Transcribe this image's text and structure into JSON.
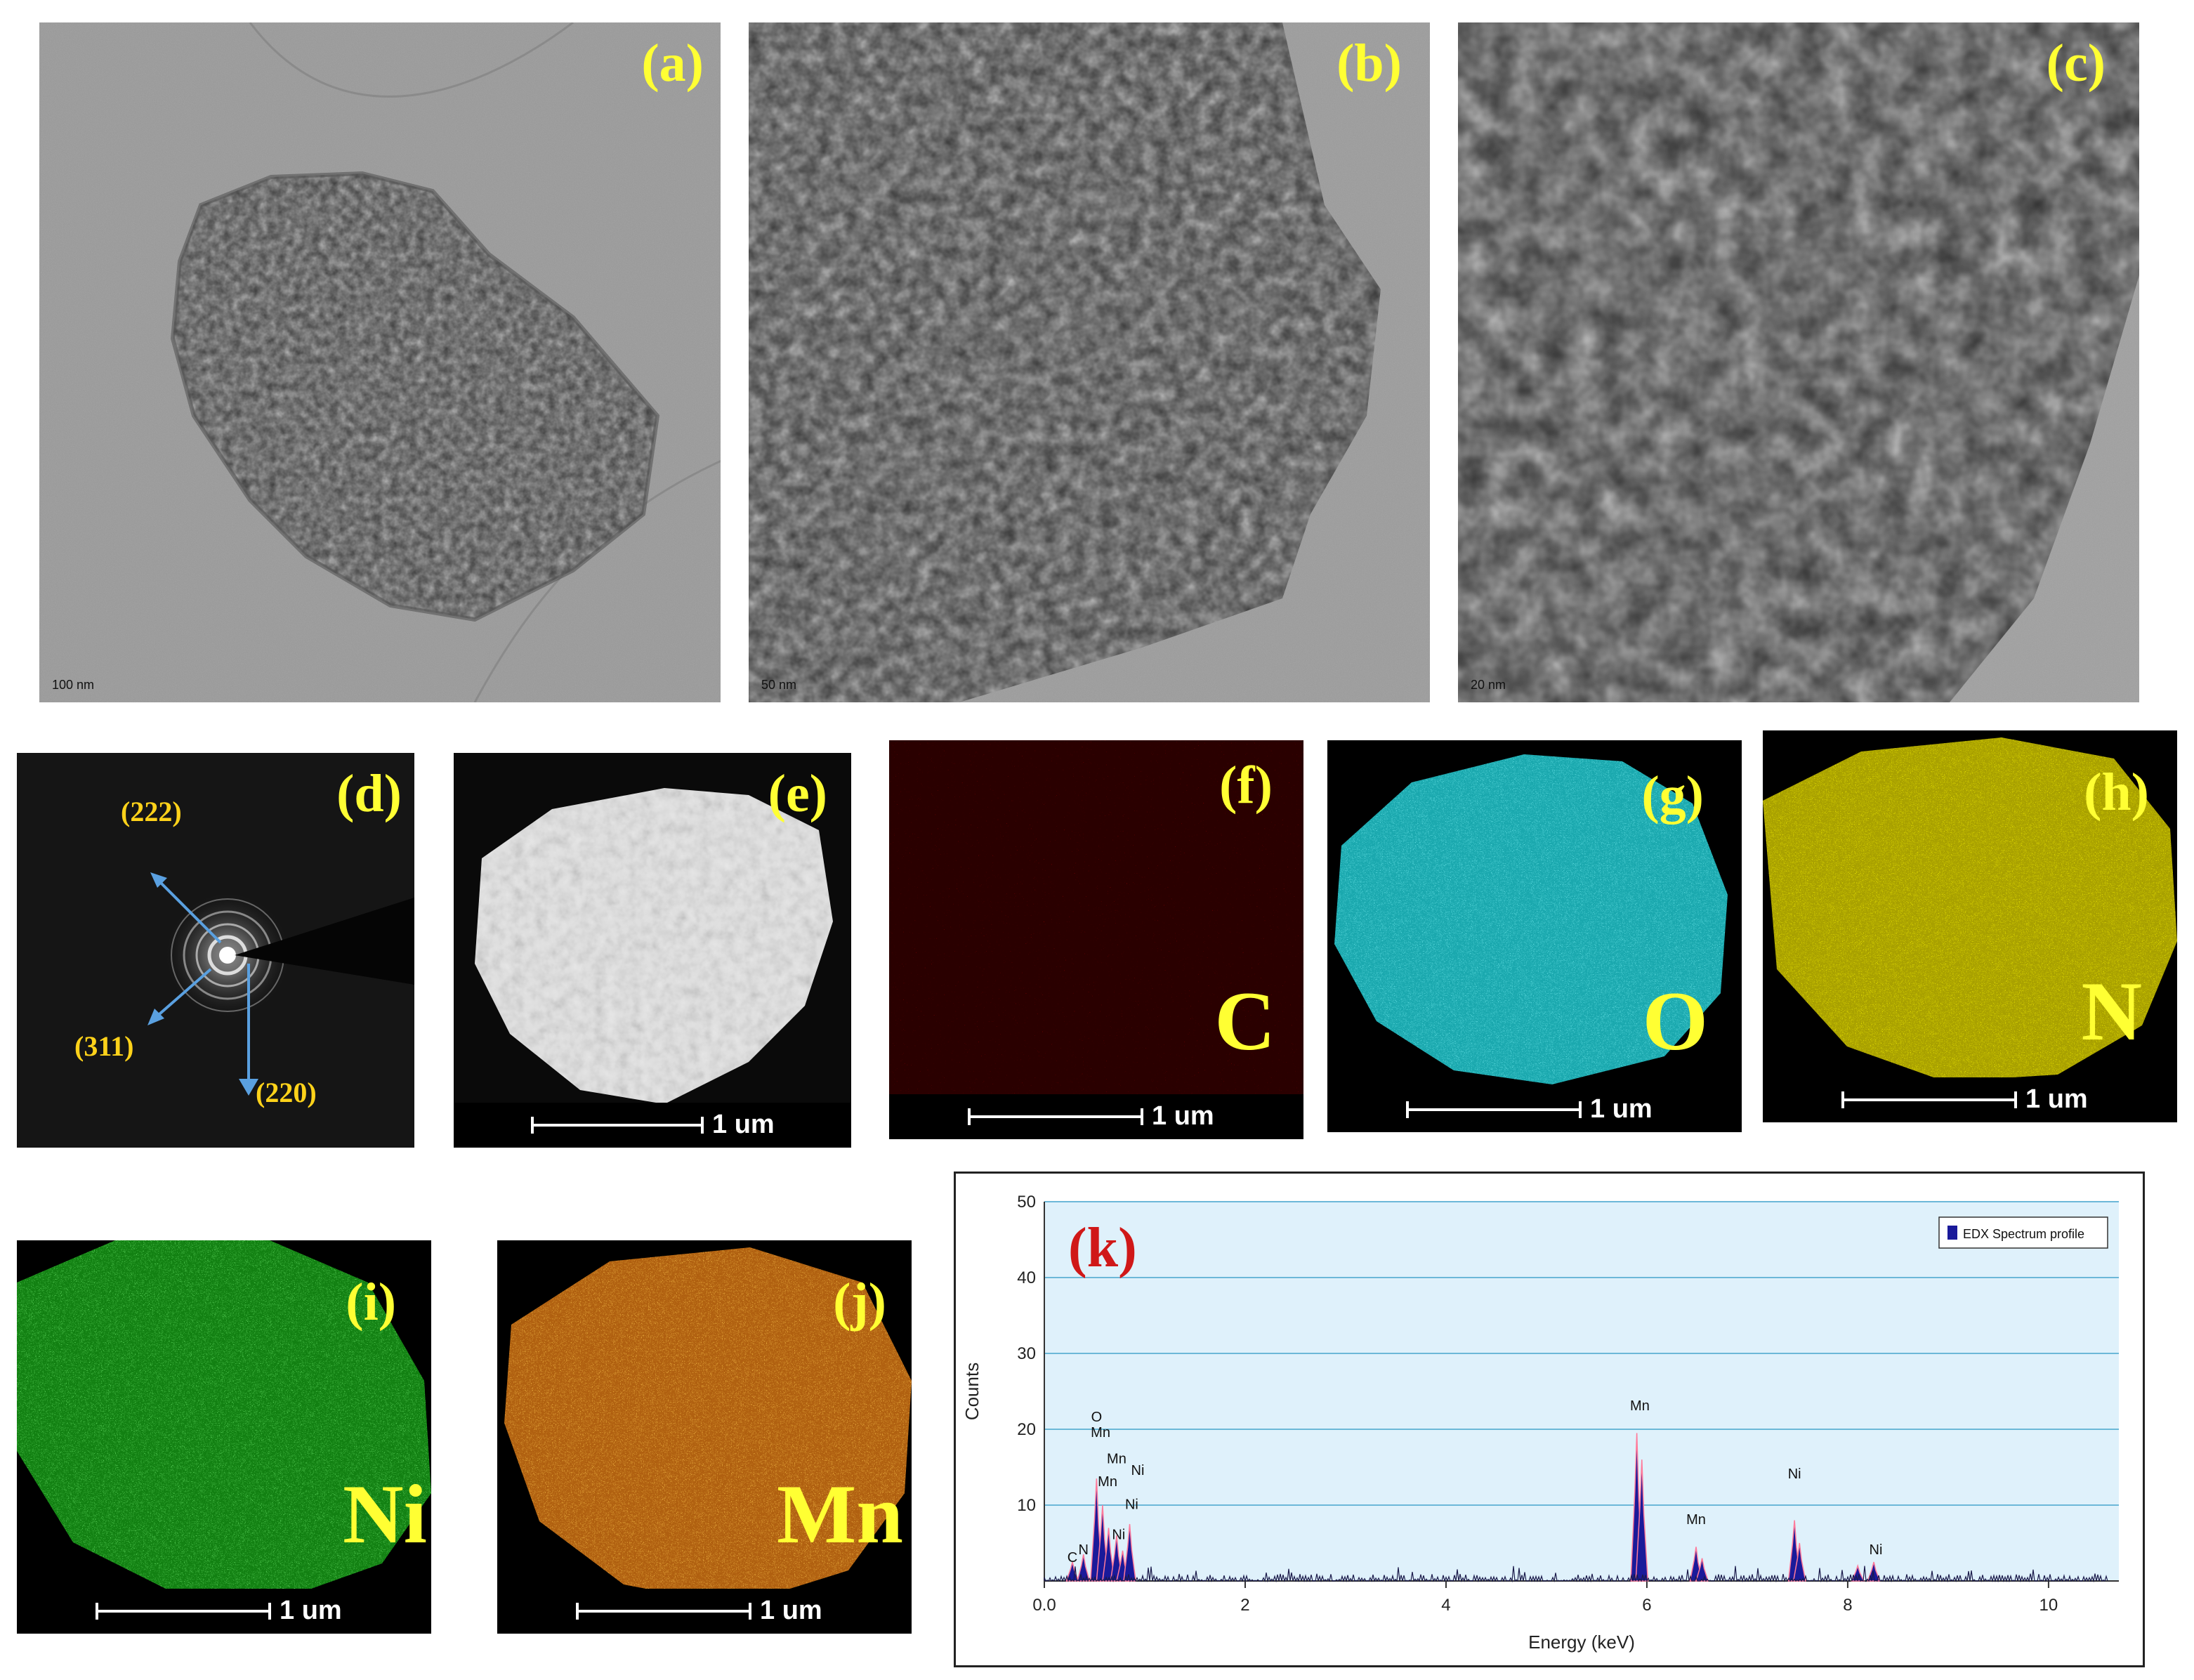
{
  "panels": {
    "a": {
      "label": "(a)",
      "scale": "100 nm"
    },
    "b": {
      "label": "(b)",
      "scale": "50 nm"
    },
    "c": {
      "label": "(c)",
      "scale": "20 nm"
    },
    "d": {
      "label": "(d)",
      "rings": [
        "(222)",
        "(311)",
        "(220)"
      ]
    },
    "e": {
      "label": "(e)",
      "scale": "1 um"
    },
    "f": {
      "label": "(f)",
      "element": "C",
      "scale": "1 um",
      "color": "#e00000"
    },
    "g": {
      "label": "(g)",
      "element": "O",
      "scale": "1 um",
      "color": "#22c0c8"
    },
    "h": {
      "label": "(h)",
      "element": "N",
      "scale": "1 um",
      "color": "#c8c000"
    },
    "i": {
      "label": "(i)",
      "element": "Ni",
      "scale": "1 um",
      "color": "#1fb51f"
    },
    "j": {
      "label": "(j)",
      "element": "Mn",
      "scale": "1 um",
      "color": "#e07a10"
    },
    "k": {
      "label": "(k)"
    }
  },
  "chart_data": {
    "type": "bar",
    "title": "",
    "xlabel": "Energy (keV)",
    "ylabel": "Counts",
    "xlim": [
      0,
      10.7
    ],
    "ylim": [
      0,
      50
    ],
    "xticks": [
      0.0,
      2,
      4,
      6,
      8,
      10
    ],
    "xtick_labels": [
      "0.0",
      "2",
      "4",
      "6",
      "8",
      "10"
    ],
    "yticks": [
      10,
      20,
      30,
      40,
      50
    ],
    "ytick_labels": [
      "10",
      "20",
      "30",
      "40",
      "50"
    ],
    "grid": true,
    "legend": {
      "position": "top-right",
      "entries": [
        "EDX Spectrum profile"
      ]
    },
    "series": [
      {
        "name": "EDX Spectrum profile",
        "color": "#1a1a9a",
        "peaks": [
          {
            "x": 0.28,
            "y": 2.5
          },
          {
            "x": 0.39,
            "y": 3.5
          },
          {
            "x": 0.52,
            "y": 13.5
          },
          {
            "x": 0.58,
            "y": 10
          },
          {
            "x": 0.64,
            "y": 7
          },
          {
            "x": 0.72,
            "y": 6
          },
          {
            "x": 0.78,
            "y": 4
          },
          {
            "x": 0.85,
            "y": 7.5
          },
          {
            "x": 5.9,
            "y": 19.5
          },
          {
            "x": 5.95,
            "y": 16
          },
          {
            "x": 6.49,
            "y": 4.5
          },
          {
            "x": 6.55,
            "y": 3.0
          },
          {
            "x": 7.47,
            "y": 8
          },
          {
            "x": 7.52,
            "y": 5
          },
          {
            "x": 8.26,
            "y": 2.5
          },
          {
            "x": 8.1,
            "y": 2
          }
        ]
      }
    ],
    "annotations": [
      {
        "text": "C",
        "x": 0.28,
        "y": 2.5
      },
      {
        "text": "N",
        "x": 0.39,
        "y": 3.5
      },
      {
        "text": "O",
        "x": 0.52,
        "y": 21
      },
      {
        "text": "Mn",
        "x": 0.56,
        "y": 19
      },
      {
        "text": "Mn",
        "x": 0.72,
        "y": 15.5
      },
      {
        "text": "Mn",
        "x": 0.63,
        "y": 12.5
      },
      {
        "text": "Ni",
        "x": 0.93,
        "y": 14
      },
      {
        "text": "Ni",
        "x": 0.87,
        "y": 9.5
      },
      {
        "text": "Ni",
        "x": 0.74,
        "y": 5.5
      },
      {
        "text": "Mn",
        "x": 5.93,
        "y": 22.5
      },
      {
        "text": "Mn",
        "x": 6.49,
        "y": 7.5
      },
      {
        "text": "Ni",
        "x": 7.47,
        "y": 13.5
      },
      {
        "text": "Ni",
        "x": 8.28,
        "y": 3.5
      }
    ]
  }
}
